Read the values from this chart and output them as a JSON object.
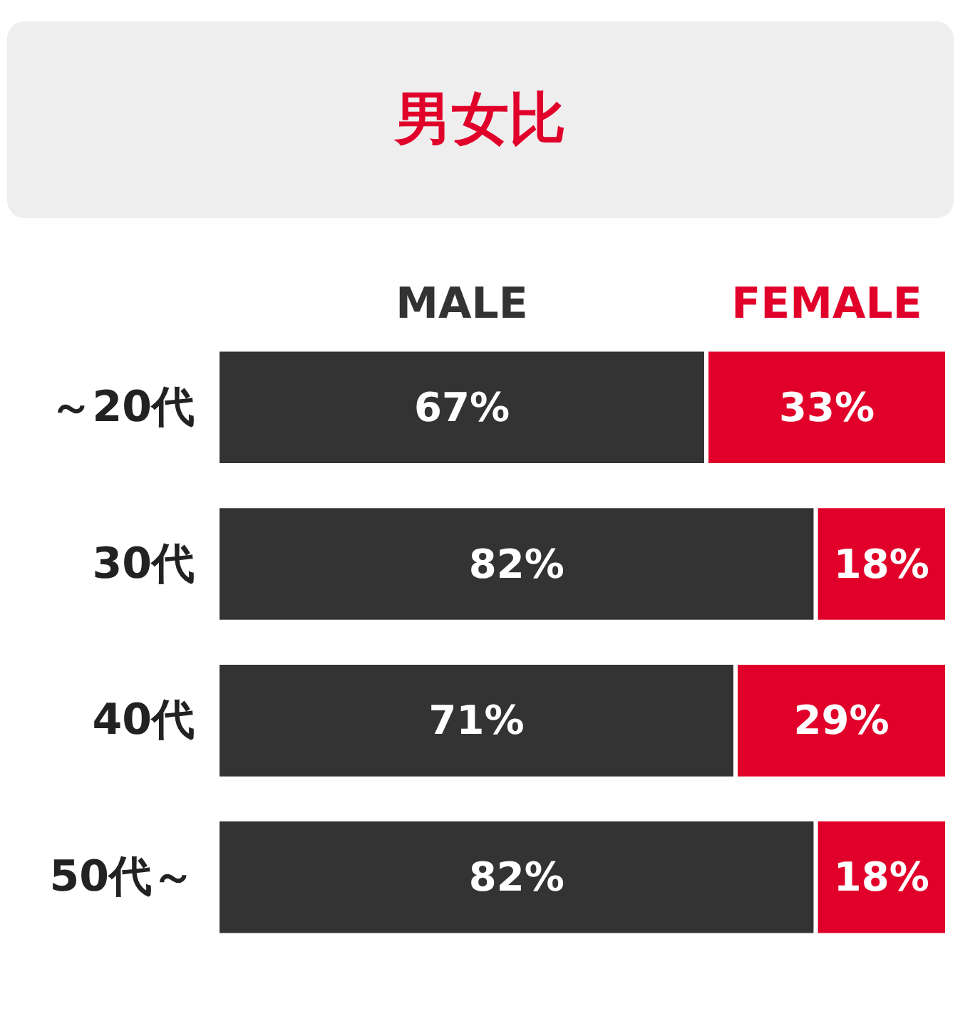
{
  "chart_data": {
    "type": "bar",
    "title": "男女比",
    "orientation": "horizontal",
    "stacked": true,
    "categories": [
      "～20代",
      "30代",
      "40代",
      "50代～"
    ],
    "xlim": [
      0,
      100
    ],
    "tick_labels": "y",
    "grid": false,
    "legend": "top",
    "series": [
      {
        "name": "MALE",
        "color": "#333333",
        "values": [
          67,
          82,
          71,
          82
        ],
        "value_labels": [
          "67%",
          "82%",
          "71%",
          "82%"
        ]
      },
      {
        "name": "FEMALE",
        "color": "#e0002a",
        "values": [
          33,
          18,
          29,
          18
        ],
        "value_labels": [
          "33%",
          "18%",
          "29%",
          "18%"
        ]
      }
    ]
  }
}
